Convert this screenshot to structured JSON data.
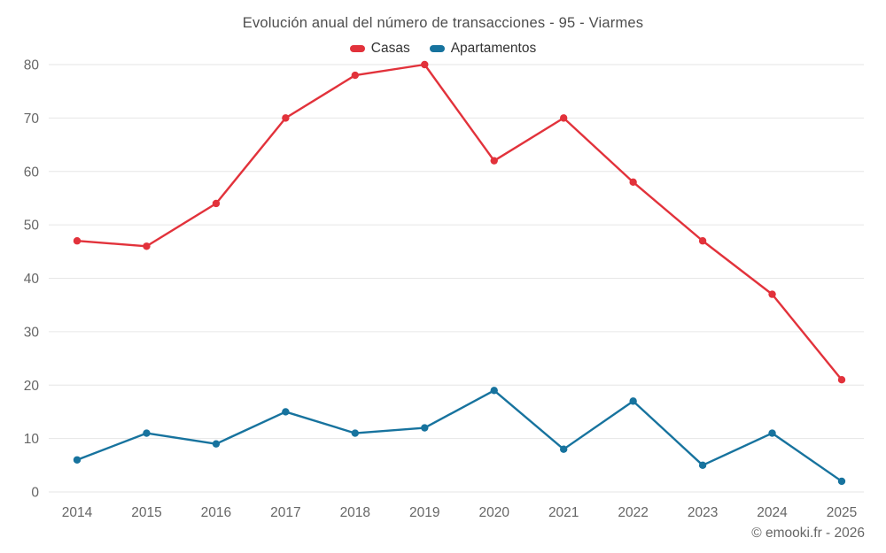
{
  "title": "Evolución anual del número de transacciones - 95 - Viarmes",
  "footer": {
    "credit": "© emooki.fr - 2026"
  },
  "colors": {
    "grid": "#e6e6e6",
    "axis_text": "#666666",
    "title_text": "#4d4d4d",
    "casas": "#e2323b",
    "apartamentos": "#17739e"
  },
  "chart_data": {
    "type": "line",
    "title": "Evolución anual del número de transacciones - 95 - Viarmes",
    "categories": [
      "2014",
      "2015",
      "2016",
      "2017",
      "2018",
      "2019",
      "2020",
      "2021",
      "2022",
      "2023",
      "2024",
      "2025"
    ],
    "series": [
      {
        "name": "Casas",
        "color": "#e2323b",
        "values": [
          47,
          46,
          54,
          70,
          78,
          80,
          62,
          70,
          58,
          47,
          37,
          21
        ]
      },
      {
        "name": "Apartamentos",
        "color": "#17739e",
        "values": [
          6,
          11,
          9,
          15,
          11,
          12,
          19,
          8,
          17,
          5,
          11,
          2
        ]
      }
    ],
    "xlabel": "",
    "ylabel": "",
    "ylim": [
      0,
      80
    ],
    "ytick_step": 10,
    "grid": "horizontal",
    "legend_position": "top",
    "marker": "circle"
  }
}
